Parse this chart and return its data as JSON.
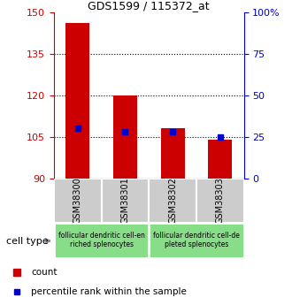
{
  "title": "GDS1599 / 115372_at",
  "samples": [
    "GSM38300",
    "GSM38301",
    "GSM38302",
    "GSM38303"
  ],
  "baseline": 90,
  "red_tops": [
    146,
    120,
    108,
    104
  ],
  "blue_pct": [
    30,
    28,
    28,
    25
  ],
  "ylim_left": [
    90,
    150
  ],
  "ylim_right": [
    0,
    100
  ],
  "yticks_left": [
    90,
    105,
    120,
    135,
    150
  ],
  "yticks_right": [
    0,
    25,
    50,
    75,
    100
  ],
  "ytick_labels_right": [
    "0",
    "25",
    "50",
    "75",
    "100%"
  ],
  "left_color": "#cc0000",
  "right_color": "#0000cc",
  "bar_width": 0.5,
  "group_labels": [
    "follicular dendritic cell-en\nriched splenocytes",
    "follicular dendritic cell-de\npleted splenocytes"
  ],
  "cell_type_label": "cell type",
  "legend_count": "count",
  "legend_pct": "percentile rank within the sample",
  "gray_color": "#cccccc",
  "green_color": "#88dd88"
}
